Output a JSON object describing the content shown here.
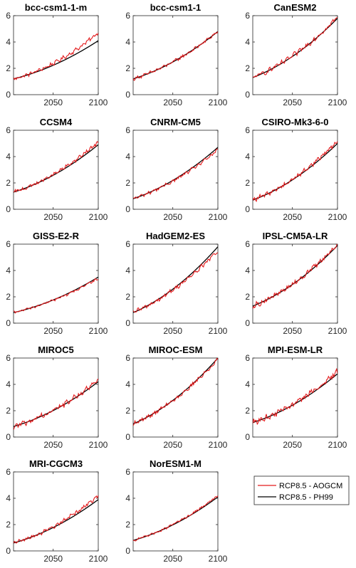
{
  "colors": {
    "aogcm": "#e31a1c",
    "ph99": "#000000",
    "axis": "#262626"
  },
  "legend": {
    "placement": "bottom-right",
    "entries": [
      "RCP8.5 - AOGCM",
      "RCP8.5 - PH99"
    ]
  },
  "chart_data": [
    {
      "type": "line",
      "title": "bcc-csm1-1-m",
      "xlim": [
        2006,
        2100
      ],
      "ylim": [
        0,
        6
      ],
      "xticks": [
        2050,
        2100
      ],
      "yticks": [
        0,
        2,
        4,
        6
      ],
      "start": 1.2,
      "end_ph99": 4.1,
      "end_aogcm": 4.7,
      "noise": 0.12
    },
    {
      "type": "line",
      "title": "bcc-csm1-1",
      "xlim": [
        2006,
        2100
      ],
      "ylim": [
        0,
        6
      ],
      "xticks": [
        2050,
        2100
      ],
      "yticks": [
        0,
        2,
        4,
        6
      ],
      "start": 1.2,
      "end_ph99": 4.8,
      "end_aogcm": 4.8,
      "noise": 0.1
    },
    {
      "type": "line",
      "title": "CanESM2",
      "xlim": [
        2006,
        2100
      ],
      "ylim": [
        0,
        6
      ],
      "xticks": [
        2050,
        2100
      ],
      "yticks": [
        0,
        2,
        4,
        6
      ],
      "start": 1.3,
      "end_ph99": 5.8,
      "end_aogcm": 5.9,
      "noise": 0.16
    },
    {
      "type": "line",
      "title": "CCSM4",
      "xlim": [
        2006,
        2100
      ],
      "ylim": [
        0,
        6
      ],
      "xticks": [
        2050,
        2100
      ],
      "yticks": [
        0,
        2,
        4,
        6
      ],
      "start": 1.3,
      "end_ph99": 4.9,
      "end_aogcm": 5.1,
      "noise": 0.12
    },
    {
      "type": "line",
      "title": "CNRM-CM5",
      "xlim": [
        2006,
        2100
      ],
      "ylim": [
        0,
        6
      ],
      "xticks": [
        2050,
        2100
      ],
      "yticks": [
        0,
        2,
        4,
        6
      ],
      "start": 0.8,
      "end_ph99": 4.7,
      "end_aogcm": 4.5,
      "noise": 0.1
    },
    {
      "type": "line",
      "title": "CSIRO-Mk3-6-0",
      "xlim": [
        2006,
        2100
      ],
      "ylim": [
        0,
        6
      ],
      "xticks": [
        2050,
        2100
      ],
      "yticks": [
        0,
        2,
        4,
        6
      ],
      "start": 0.7,
      "end_ph99": 5.0,
      "end_aogcm": 5.2,
      "noise": 0.14
    },
    {
      "type": "line",
      "title": "GISS-E2-R",
      "xlim": [
        2006,
        2100
      ],
      "ylim": [
        0,
        6
      ],
      "xticks": [
        2050,
        2100
      ],
      "yticks": [
        0,
        2,
        4,
        6
      ],
      "start": 0.8,
      "end_ph99": 3.5,
      "end_aogcm": 3.4,
      "noise": 0.08
    },
    {
      "type": "line",
      "title": "HadGEM2-ES",
      "xlim": [
        2006,
        2100
      ],
      "ylim": [
        0,
        6
      ],
      "xticks": [
        2050,
        2100
      ],
      "yticks": [
        0,
        2,
        4,
        6
      ],
      "start": 0.8,
      "end_ph99": 5.8,
      "end_aogcm": 5.5,
      "noise": 0.13
    },
    {
      "type": "line",
      "title": "IPSL-CM5A-LR",
      "xlim": [
        2006,
        2100
      ],
      "ylim": [
        0,
        6
      ],
      "xticks": [
        2050,
        2100
      ],
      "yticks": [
        0,
        2,
        4,
        6
      ],
      "start": 1.3,
      "end_ph99": 5.9,
      "end_aogcm": 6.0,
      "noise": 0.16
    },
    {
      "type": "line",
      "title": "MIROC5",
      "xlim": [
        2006,
        2100
      ],
      "ylim": [
        0,
        6
      ],
      "xticks": [
        2050,
        2100
      ],
      "yticks": [
        0,
        2,
        4,
        6
      ],
      "start": 0.8,
      "end_ph99": 4.2,
      "end_aogcm": 4.3,
      "noise": 0.18
    },
    {
      "type": "line",
      "title": "MIROC-ESM",
      "xlim": [
        2006,
        2100
      ],
      "ylim": [
        0,
        6
      ],
      "xticks": [
        2050,
        2100
      ],
      "yticks": [
        0,
        2,
        4,
        6
      ],
      "start": 1.0,
      "end_ph99": 6.0,
      "end_aogcm": 5.9,
      "noise": 0.13
    },
    {
      "type": "line",
      "title": "MPI-ESM-LR",
      "xlim": [
        2006,
        2100
      ],
      "ylim": [
        0,
        6
      ],
      "xticks": [
        2050,
        2100
      ],
      "yticks": [
        0,
        2,
        4,
        6
      ],
      "start": 1.1,
      "end_ph99": 4.8,
      "end_aogcm": 5.0,
      "noise": 0.18
    },
    {
      "type": "line",
      "title": "MRI-CGCM3",
      "xlim": [
        2006,
        2100
      ],
      "ylim": [
        0,
        6
      ],
      "xticks": [
        2050,
        2100
      ],
      "yticks": [
        0,
        2,
        4,
        6
      ],
      "start": 0.6,
      "end_ph99": 3.9,
      "end_aogcm": 4.2,
      "noise": 0.12
    },
    {
      "type": "line",
      "title": "NorESM1-M",
      "xlim": [
        2006,
        2100
      ],
      "ylim": [
        0,
        6
      ],
      "xticks": [
        2050,
        2100
      ],
      "yticks": [
        0,
        2,
        4,
        6
      ],
      "start": 0.8,
      "end_ph99": 4.1,
      "end_aogcm": 4.2,
      "noise": 0.07
    }
  ]
}
